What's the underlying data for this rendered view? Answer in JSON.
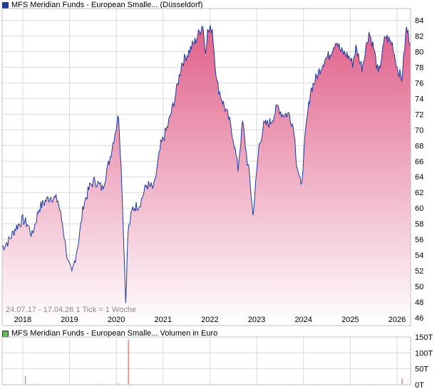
{
  "colors": {
    "price_line": "#1f3b9c",
    "fill_top": "#e0608a",
    "fill_bottom": "#ffffff",
    "volume_bar": "#3cb043",
    "volume_bar_alt": "#e04040",
    "grid": "#d9d9d9",
    "price_swatch": "#1f3b9c",
    "volume_swatch": "#60c060"
  },
  "legend": {
    "price": "MFS Meridian Funds - European Smalle... (Düsseldorf)",
    "volume": "MFS Meridian Funds - European Smalle... Volumen in Euro"
  },
  "range_text": "24.07.17 - 17.04.26   1 Tick = 1 Woche",
  "chart_data": [
    {
      "type": "area",
      "series": [
        {
          "values_time": [
            2017.56,
            2017.7,
            2017.85,
            2018.0,
            2018.1,
            2018.2,
            2018.35,
            2018.5,
            2018.6,
            2018.75,
            2018.85,
            2018.97,
            2019.05,
            2019.2,
            2019.3,
            2019.45,
            2019.55,
            2019.7,
            2019.85,
            2019.95,
            2020.05,
            2020.12,
            2020.2,
            2020.25,
            2020.35,
            2020.5,
            2020.65,
            2020.8,
            2020.95,
            2021.1,
            2021.25,
            2021.4,
            2021.55,
            2021.7,
            2021.85,
            2021.9,
            2021.95,
            2022.05,
            2022.15,
            2022.25,
            2022.4,
            2022.5,
            2022.6,
            2022.7,
            2022.8,
            2022.85,
            2022.92,
            2023.05,
            2023.15,
            2023.3,
            2023.45,
            2023.55,
            2023.7,
            2023.8,
            2023.85,
            2023.95,
            2024.05,
            2024.15,
            2024.3,
            2024.45,
            2024.55,
            2024.7,
            2024.8,
            2024.95,
            2025.05,
            2025.12,
            2025.25,
            2025.4,
            2025.5,
            2025.6,
            2025.75,
            2025.9,
            2026.0,
            2026.1,
            2026.2,
            2026.29
          ],
          "values": [
            55.0,
            55.8,
            57.5,
            58.5,
            58.0,
            56.5,
            60.0,
            61.0,
            61.5,
            61.0,
            58.0,
            53.0,
            51.5,
            56.0,
            60.5,
            63.0,
            63.5,
            62.5,
            66.0,
            69.0,
            72.0,
            63.0,
            48.0,
            57.0,
            60.0,
            60.5,
            63.0,
            62.5,
            68.0,
            70.5,
            74.0,
            78.5,
            80.0,
            81.5,
            83.5,
            80.0,
            82.5,
            83.0,
            76.0,
            74.0,
            71.5,
            69.0,
            65.0,
            71.0,
            66.0,
            64.0,
            59.0,
            68.0,
            70.5,
            71.0,
            73.0,
            72.0,
            72.0,
            70.0,
            66.0,
            62.5,
            70.0,
            75.0,
            77.0,
            79.0,
            79.5,
            81.5,
            80.0,
            79.5,
            78.5,
            80.5,
            78.0,
            82.5,
            80.5,
            77.0,
            82.0,
            81.0,
            78.0,
            76.5,
            83.0,
            81.0
          ]
        }
      ],
      "x_ticks": [
        "2018",
        "2019",
        "2020",
        "2021",
        "2022",
        "2023",
        "2024",
        "2025",
        "2026"
      ],
      "y_ticks": [
        "46",
        "48",
        "50",
        "52",
        "54",
        "56",
        "58",
        "60",
        "62",
        "64",
        "66",
        "68",
        "70",
        "72",
        "74",
        "76",
        "78",
        "80",
        "82",
        "84"
      ],
      "ylim": [
        45,
        85.5
      ],
      "xlim": [
        2017.56,
        2026.29
      ],
      "grid": true
    },
    {
      "type": "bar",
      "series": [
        {
          "values_time": [
            2018.05,
            2018.3,
            2019.4,
            2019.6,
            2020.05,
            2020.25,
            2021.1,
            2022.0,
            2023.1,
            2023.7,
            2024.2,
            2025.0,
            2025.5,
            2026.1
          ],
          "values": [
            28,
            3,
            2,
            3,
            4,
            142,
            2,
            3,
            2,
            2,
            2,
            2,
            2,
            20
          ]
        }
      ],
      "y_ticks": [
        "0T",
        "50T",
        "100T",
        "150T"
      ],
      "ylim": [
        0,
        150
      ]
    }
  ]
}
